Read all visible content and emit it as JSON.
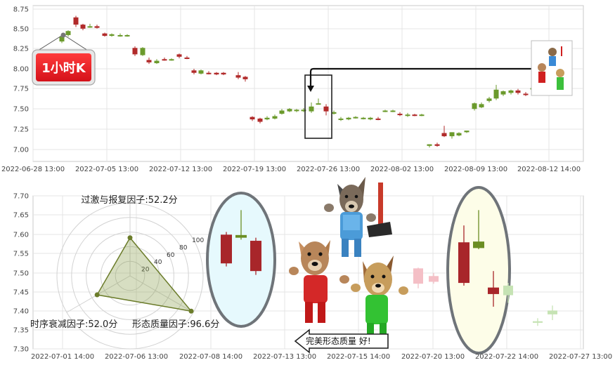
{
  "top_chart": {
    "badge_label": "1小时K",
    "y_ticks": [
      "8.75",
      "8.50",
      "8.25",
      "8.00",
      "7.75",
      "7.50",
      "7.25",
      "7.00"
    ],
    "x_ticks": [
      "2022-06-28 13:00",
      "2022-07-05 13:00",
      "2022-07-12 13:00",
      "2022-07-19 13:00",
      "2022-07-26 13:00",
      "2022-08-02 13:00",
      "2022-08-09 13:00",
      "2022-08-12 14:00"
    ]
  },
  "bottom_chart": {
    "y_ticks": [
      "7.70",
      "7.65",
      "7.60",
      "7.55",
      "7.50",
      "7.45",
      "7.40",
      "7.35",
      "7.30"
    ],
    "x_ticks": [
      "2022-07-01 14:00",
      "2022-07-06 13:00",
      "2022-07-08 14:00",
      "2022-07-13 13:00",
      "2022-07-15 14:00",
      "2022-07-20 13:00",
      "2022-07-22 14:00",
      "2022-07-27 13:00"
    ],
    "pattern_label": "完美形态质量 好!"
  },
  "radar": {
    "ring_ticks": [
      "20",
      "40",
      "60",
      "80",
      "100"
    ],
    "axes": [
      {
        "label": "过激与报复因子:52.2分",
        "value": 52.2
      },
      {
        "label": "形态质量因子:96.6分",
        "value": 96.6
      },
      {
        "label": "时序衰减因子:52.0分",
        "value": 52.0
      }
    ]
  },
  "chart_data": [
    {
      "type": "candlestick",
      "interval": "1h",
      "ylim": [
        6.93,
        8.77
      ],
      "x_ticks": [
        "2022-06-28 13:00",
        "2022-07-05 13:00",
        "2022-07-12 13:00",
        "2022-07-19 13:00",
        "2022-07-26 13:00",
        "2022-08-02 13:00",
        "2022-08-09 13:00",
        "2022-08-12 14:00"
      ],
      "candles": [
        {
          "o": 8.34,
          "h": 8.42,
          "l": 8.32,
          "c": 8.4
        },
        {
          "o": 8.42,
          "h": 8.48,
          "l": 8.4,
          "c": 8.47
        },
        {
          "o": 8.64,
          "h": 8.66,
          "l": 8.52,
          "c": 8.55
        },
        {
          "o": 8.55,
          "h": 8.56,
          "l": 8.48,
          "c": 8.5
        },
        {
          "o": 8.53,
          "h": 8.56,
          "l": 8.51,
          "c": 8.53
        },
        {
          "o": 8.53,
          "h": 8.55,
          "l": 8.5,
          "c": 8.51
        },
        {
          "o": 8.44,
          "h": 8.45,
          "l": 8.4,
          "c": 8.41
        },
        {
          "o": 8.41,
          "h": 8.44,
          "l": 8.4,
          "c": 8.43
        },
        {
          "o": 8.41,
          "h": 8.44,
          "l": 8.4,
          "c": 8.42
        },
        {
          "o": 8.41,
          "h": 8.43,
          "l": 8.4,
          "c": 8.42
        },
        {
          "o": 8.26,
          "h": 8.28,
          "l": 8.16,
          "c": 8.18
        },
        {
          "o": 8.17,
          "h": 8.27,
          "l": 8.16,
          "c": 8.26
        },
        {
          "o": 8.11,
          "h": 8.14,
          "l": 8.06,
          "c": 8.08
        },
        {
          "o": 8.07,
          "h": 8.12,
          "l": 8.06,
          "c": 8.1
        },
        {
          "o": 8.12,
          "h": 8.14,
          "l": 8.1,
          "c": 8.11
        },
        {
          "o": 8.11,
          "h": 8.13,
          "l": 8.1,
          "c": 8.12
        },
        {
          "o": 8.18,
          "h": 8.19,
          "l": 8.13,
          "c": 8.15
        },
        {
          "o": 8.14,
          "h": 8.16,
          "l": 8.12,
          "c": 8.13
        },
        {
          "o": 7.98,
          "h": 8.0,
          "l": 7.93,
          "c": 7.95
        },
        {
          "o": 7.94,
          "h": 7.99,
          "l": 7.93,
          "c": 7.98
        },
        {
          "o": 7.95,
          "h": 7.97,
          "l": 7.93,
          "c": 7.94
        },
        {
          "o": 7.95,
          "h": 7.96,
          "l": 7.92,
          "c": 7.93
        },
        {
          "o": 7.95,
          "h": 7.96,
          "l": 7.92,
          "c": 7.93
        },
        {
          "o": 7.92,
          "h": 7.96,
          "l": 7.87,
          "c": 7.89
        },
        {
          "o": 7.9,
          "h": 7.91,
          "l": 7.84,
          "c": 7.87
        },
        {
          "o": 7.4,
          "h": 7.41,
          "l": 7.35,
          "c": 7.37
        },
        {
          "o": 7.38,
          "h": 7.39,
          "l": 7.32,
          "c": 7.34
        },
        {
          "o": 7.37,
          "h": 7.41,
          "l": 7.36,
          "c": 7.39
        },
        {
          "o": 7.38,
          "h": 7.43,
          "l": 7.37,
          "c": 7.41
        },
        {
          "o": 7.44,
          "h": 7.5,
          "l": 7.43,
          "c": 7.48
        },
        {
          "o": 7.47,
          "h": 7.51,
          "l": 7.46,
          "c": 7.5
        },
        {
          "o": 7.48,
          "h": 7.5,
          "l": 7.46,
          "c": 7.49
        },
        {
          "o": 7.48,
          "h": 7.51,
          "l": 7.46,
          "c": 7.49
        },
        {
          "o": 7.47,
          "h": 7.58,
          "l": 7.45,
          "c": 7.53
        },
        {
          "o": 7.57,
          "h": 7.63,
          "l": 7.56,
          "c": 7.57
        },
        {
          "o": 7.53,
          "h": 7.56,
          "l": 7.42,
          "c": 7.47
        },
        {
          "o": 7.44,
          "h": 7.48,
          "l": 7.43,
          "c": 7.46
        },
        {
          "o": 7.38,
          "h": 7.4,
          "l": 7.35,
          "c": 7.38
        },
        {
          "o": 7.37,
          "h": 7.4,
          "l": 7.36,
          "c": 7.39
        },
        {
          "o": 7.39,
          "h": 7.41,
          "l": 7.38,
          "c": 7.4
        },
        {
          "o": 7.38,
          "h": 7.4,
          "l": 7.37,
          "c": 7.39
        },
        {
          "o": 7.37,
          "h": 7.4,
          "l": 7.36,
          "c": 7.39
        },
        {
          "o": 7.38,
          "h": 7.4,
          "l": 7.36,
          "c": 7.37
        },
        {
          "o": 7.47,
          "h": 7.49,
          "l": 7.46,
          "c": 7.48
        },
        {
          "o": 7.47,
          "h": 7.49,
          "l": 7.46,
          "c": 7.48
        },
        {
          "o": 7.44,
          "h": 7.46,
          "l": 7.41,
          "c": 7.43
        },
        {
          "o": 7.42,
          "h": 7.45,
          "l": 7.4,
          "c": 7.43
        },
        {
          "o": 7.43,
          "h": 7.44,
          "l": 7.41,
          "c": 7.42
        },
        {
          "o": 7.42,
          "h": 7.44,
          "l": 7.41,
          "c": 7.43
        },
        {
          "o": 7.04,
          "h": 7.06,
          "l": 7.02,
          "c": 7.06
        },
        {
          "o": 7.06,
          "h": 7.08,
          "l": 7.03,
          "c": 7.04
        },
        {
          "o": 7.2,
          "h": 7.29,
          "l": 7.15,
          "c": 7.16
        },
        {
          "o": 7.16,
          "h": 7.21,
          "l": 7.13,
          "c": 7.21
        },
        {
          "o": 7.17,
          "h": 7.21,
          "l": 7.16,
          "c": 7.2
        },
        {
          "o": 7.21,
          "h": 7.23,
          "l": 7.2,
          "c": 7.23
        },
        {
          "o": 7.5,
          "h": 7.58,
          "l": 7.48,
          "c": 7.57
        },
        {
          "o": 7.52,
          "h": 7.58,
          "l": 7.51,
          "c": 7.56
        },
        {
          "o": 7.6,
          "h": 7.65,
          "l": 7.58,
          "c": 7.63
        },
        {
          "o": 7.63,
          "h": 7.8,
          "l": 7.61,
          "c": 7.74
        },
        {
          "o": 7.68,
          "h": 7.73,
          "l": 7.66,
          "c": 7.72
        },
        {
          "o": 7.7,
          "h": 7.74,
          "l": 7.68,
          "c": 7.73
        },
        {
          "o": 7.73,
          "h": 7.75,
          "l": 7.68,
          "c": 7.7
        },
        {
          "o": 7.69,
          "h": 7.71,
          "l": 7.66,
          "c": 7.68
        },
        {
          "o": 7.75,
          "h": 7.77,
          "l": 7.74,
          "c": 7.76
        }
      ]
    },
    {
      "type": "candlestick",
      "interval": "daily",
      "ylim": [
        7.3,
        7.71
      ],
      "x_ticks": [
        "2022-07-01 14:00",
        "2022-07-06 13:00",
        "2022-07-08 14:00",
        "2022-07-13 13:00",
        "2022-07-15 14:00",
        "2022-07-20 13:00",
        "2022-07-22 14:00",
        "2022-07-27 13:00"
      ],
      "candles": [
        {
          "o": 7.598,
          "h": 7.605,
          "l": 7.515,
          "c": 7.523
        },
        {
          "o": 7.59,
          "h": 7.662,
          "l": 7.585,
          "c": 7.597
        },
        {
          "o": 7.582,
          "h": 7.59,
          "l": 7.493,
          "c": 7.503
        },
        {
          "o": 7.51,
          "h": 7.512,
          "l": 7.458,
          "c": 7.47
        },
        {
          "o": 7.49,
          "h": 7.498,
          "l": 7.47,
          "c": 7.475
        },
        {
          "o": 7.578,
          "h": 7.622,
          "l": 7.465,
          "c": 7.472
        },
        {
          "o": 7.563,
          "h": 7.662,
          "l": 7.56,
          "c": 7.58
        },
        {
          "o": 7.46,
          "h": 7.503,
          "l": 7.41,
          "c": 7.443
        },
        {
          "o": 7.44,
          "h": 7.472,
          "l": 7.42,
          "c": 7.465
        },
        {
          "o": 7.368,
          "h": 7.38,
          "l": 7.36,
          "c": 7.372
        },
        {
          "o": 7.39,
          "h": 7.413,
          "l": 7.375,
          "c": 7.4
        }
      ]
    }
  ]
}
